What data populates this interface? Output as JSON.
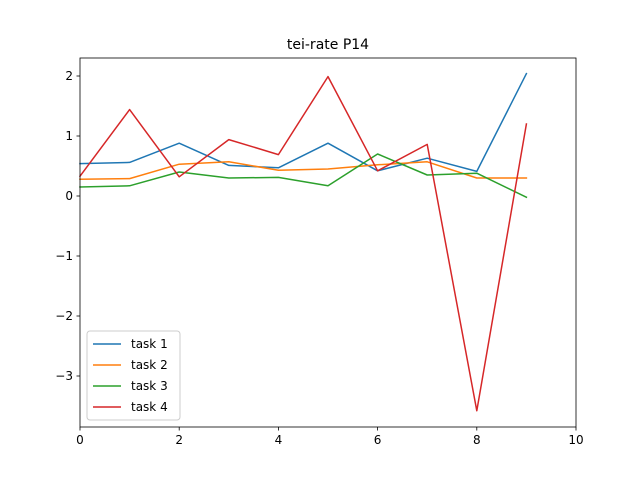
{
  "chart_data": {
    "type": "line",
    "title": "tei-rate P14",
    "xlabel": "",
    "ylabel": "",
    "xlim": [
      0,
      10
    ],
    "ylim": [
      -3.85,
      2.3
    ],
    "xticks": [
      0,
      2,
      4,
      6,
      8,
      10
    ],
    "yticks": [
      -3,
      -2,
      -1,
      0,
      1,
      2
    ],
    "ytick_labels": [
      "−3",
      "−2",
      "−1",
      "0",
      "1",
      "2"
    ],
    "grid": false,
    "legend_position": "lower-left",
    "x": [
      0,
      1,
      2,
      3,
      4,
      5,
      6,
      7,
      8,
      9
    ],
    "series": [
      {
        "name": "task 1",
        "color": "#1f77b4",
        "values": [
          0.54,
          0.56,
          0.88,
          0.51,
          0.47,
          0.88,
          0.42,
          0.63,
          0.41,
          2.04
        ]
      },
      {
        "name": "task 2",
        "color": "#ff7f0e",
        "values": [
          0.28,
          0.29,
          0.53,
          0.57,
          0.43,
          0.45,
          0.52,
          0.57,
          0.3,
          0.3
        ]
      },
      {
        "name": "task 3",
        "color": "#2ca02c",
        "values": [
          0.15,
          0.17,
          0.4,
          0.3,
          0.31,
          0.17,
          0.7,
          0.35,
          0.38,
          -0.02
        ]
      },
      {
        "name": "task 4",
        "color": "#d62728",
        "values": [
          0.33,
          1.44,
          0.32,
          0.94,
          0.69,
          1.99,
          0.42,
          0.86,
          -3.58,
          1.2
        ]
      }
    ]
  }
}
